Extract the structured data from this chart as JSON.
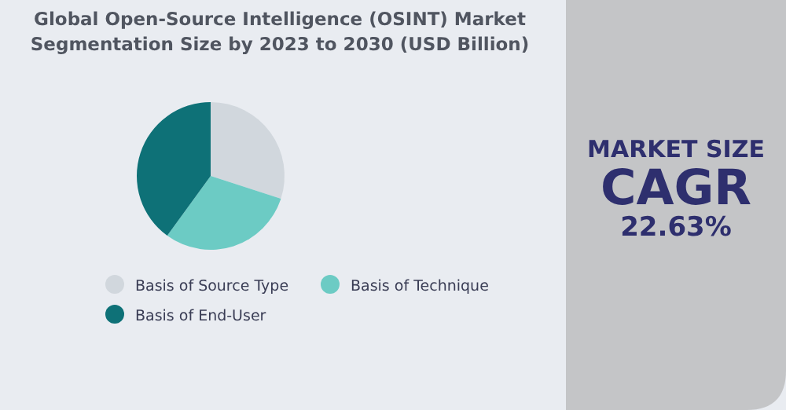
{
  "chart_data": {
    "type": "pie",
    "title": "Global Open-Source Intelligence (OSINT) Market Segmentation Size by 2023 to 2030 (USD Billion)",
    "categories": [
      "Basis of Source Type",
      "Basis of Technique",
      "Basis of End-User"
    ],
    "values": [
      30,
      30,
      40
    ],
    "colors": [
      "#d1d7dd",
      "#6ccbc4",
      "#0e7177"
    ],
    "legend": "bottom",
    "annotations": [
      "MARKET SIZE",
      "CAGR",
      "22.63%"
    ]
  }
}
